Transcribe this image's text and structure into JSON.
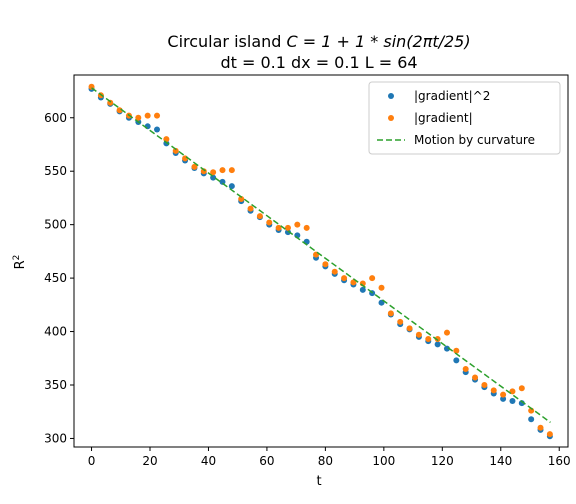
{
  "chart_data": {
    "type": "scatter",
    "title_line1_prefix": "Circular island ",
    "title_line1_math": "C = 1 + 1 * sin(2πt/25)",
    "title_line2": "dt = 0.1 dx = 0.1 L = 64",
    "xlabel": "t",
    "ylabel": "R²",
    "xlim": [
      -6,
      163
    ],
    "ylim": [
      292,
      640
    ],
    "xticks": [
      0,
      20,
      40,
      60,
      80,
      100,
      120,
      140,
      160
    ],
    "yticks": [
      300,
      350,
      400,
      450,
      500,
      550,
      600
    ],
    "legend_position": "top-right",
    "grid": false,
    "series": [
      {
        "name": "|gradient|^2",
        "kind": "points",
        "color": "#1f77b4",
        "x": [
          0,
          3.2,
          6.4,
          9.6,
          12.8,
          16,
          19.2,
          22.4,
          25.6,
          28.8,
          32,
          35.2,
          38.4,
          41.6,
          44.8,
          48,
          51.2,
          54.4,
          57.6,
          60.8,
          64,
          67.2,
          70.4,
          73.6,
          76.8,
          80,
          83.2,
          86.4,
          89.6,
          92.8,
          96,
          99.2,
          102.4,
          105.6,
          108.8,
          112,
          115.2,
          118.4,
          121.6,
          124.8,
          128,
          131.2,
          134.4,
          137.6,
          140.8,
          144,
          147.2,
          150.4,
          153.6,
          156.8
        ],
        "y": [
          627,
          619,
          613,
          606,
          600,
          596,
          592,
          589,
          576,
          567,
          560,
          553,
          548,
          544,
          540,
          536,
          522,
          513,
          507,
          500,
          495,
          493,
          490,
          484,
          469,
          461,
          454,
          448,
          444,
          439,
          436,
          427,
          416,
          407,
          402,
          395,
          391,
          388,
          384,
          373,
          362,
          355,
          348,
          342,
          337,
          335,
          333,
          318,
          308,
          302
        ]
      },
      {
        "name": "|gradient|",
        "kind": "points",
        "color": "#ff7f0e",
        "x": [
          0,
          3.2,
          6.4,
          9.6,
          12.8,
          16,
          19.2,
          22.4,
          25.6,
          28.8,
          32,
          35.2,
          38.4,
          41.6,
          44.8,
          48,
          51.2,
          54.4,
          57.6,
          60.8,
          64,
          67.2,
          70.4,
          73.6,
          76.8,
          80,
          83.2,
          86.4,
          89.6,
          92.8,
          96,
          99.2,
          102.4,
          105.6,
          108.8,
          112,
          115.2,
          118.4,
          121.6,
          124.8,
          128,
          131.2,
          134.4,
          137.6,
          140.8,
          144,
          147.2,
          150.4,
          153.6,
          156.8
        ],
        "y": [
          629,
          621,
          614,
          607,
          602,
          600,
          602,
          602,
          580,
          569,
          562,
          554,
          550,
          549,
          551,
          551,
          524,
          515,
          508,
          502,
          497,
          497,
          500,
          497,
          472,
          463,
          456,
          450,
          446,
          445,
          450,
          441,
          417,
          409,
          403,
          397,
          393,
          393,
          399,
          382,
          365,
          357,
          350,
          345,
          341,
          344,
          347,
          326,
          310,
          304
        ]
      },
      {
        "name": "Motion by curvature",
        "kind": "line",
        "dash": true,
        "color": "#2ca02c",
        "x": [
          0,
          157
        ],
        "y": [
          628,
          315
        ]
      }
    ]
  }
}
